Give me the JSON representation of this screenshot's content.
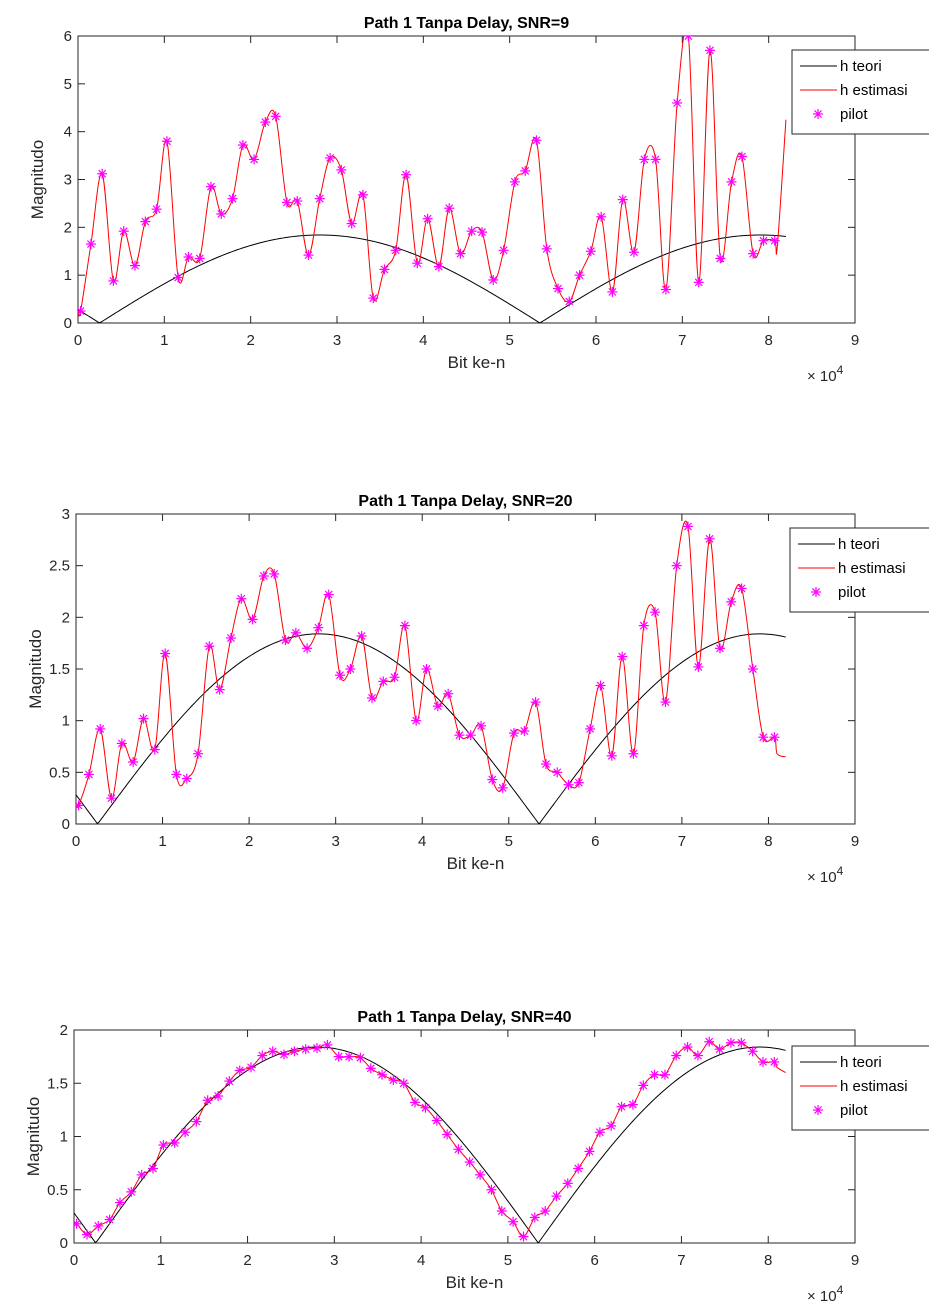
{
  "chart_data": [
    {
      "type": "line",
      "title": "Path 1 Tanpa Delay, SNR=9",
      "xlabel": "Bit ke-n",
      "ylabel": "Magnitudo",
      "x_multiplier_label": "× 10^4",
      "x_multiplier_base": "× 10",
      "x_multiplier_exp": "4",
      "xlim": [
        0,
        9
      ],
      "ylim": [
        0,
        6
      ],
      "xticks": [
        "0",
        "1",
        "2",
        "3",
        "4",
        "5",
        "6",
        "7",
        "8",
        "9"
      ],
      "yticks": [
        "0",
        "1",
        "2",
        "3",
        "4",
        "5",
        "6"
      ],
      "legend": {
        "placement": "top-right-outside",
        "entries": [
          "h teori",
          "h estimasi",
          "pilot"
        ]
      },
      "series": [
        {
          "name": "h teori",
          "color": "#000000",
          "style": "line"
        },
        {
          "name": "h estimasi",
          "color": "#ff0000",
          "style": "line",
          "tail_x": [
            8.1,
            8.2
          ],
          "tail_y": [
            1.6,
            4.25
          ]
        },
        {
          "name": "pilot",
          "color": "#ff00ff",
          "style": "asterisk",
          "x": [
            0.03,
            0.15,
            0.28,
            0.41,
            0.53,
            0.66,
            0.78,
            0.91,
            1.03,
            1.16,
            1.28,
            1.41,
            1.54,
            1.66,
            1.79,
            1.91,
            2.04,
            2.17,
            2.29,
            2.42,
            2.54,
            2.67,
            2.8,
            2.92,
            3.05,
            3.17,
            3.3,
            3.42,
            3.55,
            3.68,
            3.8,
            3.93,
            4.05,
            4.18,
            4.3,
            4.43,
            4.56,
            4.68,
            4.81,
            4.93,
            5.06,
            5.18,
            5.31,
            5.43,
            5.56,
            5.69,
            5.81,
            5.94,
            6.06,
            6.19,
            6.31,
            6.44,
            6.56,
            6.69,
            6.81,
            6.94,
            7.07,
            7.19,
            7.32,
            7.44,
            7.57,
            7.69,
            7.82,
            7.94,
            8.07
          ],
          "y": [
            0.25,
            1.65,
            3.12,
            0.88,
            1.92,
            1.2,
            2.12,
            2.38,
            3.8,
            0.95,
            1.38,
            1.35,
            2.85,
            2.28,
            2.6,
            3.72,
            3.42,
            4.2,
            4.32,
            2.52,
            2.55,
            1.42,
            2.6,
            3.45,
            3.2,
            2.08,
            2.68,
            0.52,
            1.12,
            1.52,
            3.1,
            1.25,
            2.18,
            1.18,
            2.4,
            1.45,
            1.92,
            1.9,
            0.9,
            1.52,
            2.95,
            3.18,
            3.82,
            1.55,
            0.72,
            0.45,
            1.0,
            1.5,
            2.22,
            0.65,
            2.58,
            1.48,
            3.42,
            3.42,
            0.7,
            4.6,
            6.0,
            0.85,
            5.7,
            1.35,
            2.95,
            3.48,
            1.45,
            1.72,
            1.72
          ]
        }
      ]
    },
    {
      "type": "line",
      "title": "Path 1 Tanpa Delay, SNR=20",
      "xlabel": "Bit ke-n",
      "ylabel": "Magnitudo",
      "x_multiplier_label": "× 10^4",
      "x_multiplier_base": "× 10",
      "x_multiplier_exp": "4",
      "xlim": [
        0,
        9
      ],
      "ylim": [
        0,
        3
      ],
      "xticks": [
        "0",
        "1",
        "2",
        "3",
        "4",
        "5",
        "6",
        "7",
        "8",
        "9"
      ],
      "yticks": [
        "0",
        "0.5",
        "1",
        "1.5",
        "2",
        "2.5",
        "3"
      ],
      "legend": {
        "placement": "top-right-outside",
        "entries": [
          "h teori",
          "h estimasi",
          "pilot"
        ]
      },
      "series": [
        {
          "name": "h teori",
          "color": "#000000",
          "style": "line"
        },
        {
          "name": "h estimasi",
          "color": "#ff0000",
          "style": "line",
          "tail_x": [
            8.1,
            8.2
          ],
          "tail_y": [
            0.68,
            0.65
          ]
        },
        {
          "name": "pilot",
          "color": "#ff00ff",
          "style": "asterisk",
          "x": [
            0.03,
            0.15,
            0.28,
            0.41,
            0.53,
            0.66,
            0.78,
            0.91,
            1.03,
            1.16,
            1.28,
            1.41,
            1.54,
            1.66,
            1.79,
            1.91,
            2.04,
            2.17,
            2.29,
            2.42,
            2.54,
            2.67,
            2.8,
            2.92,
            3.05,
            3.17,
            3.3,
            3.42,
            3.55,
            3.68,
            3.8,
            3.93,
            4.05,
            4.18,
            4.3,
            4.43,
            4.56,
            4.68,
            4.81,
            4.93,
            5.06,
            5.18,
            5.31,
            5.43,
            5.56,
            5.69,
            5.81,
            5.94,
            6.06,
            6.19,
            6.31,
            6.44,
            6.56,
            6.69,
            6.81,
            6.94,
            7.07,
            7.19,
            7.32,
            7.44,
            7.57,
            7.69,
            7.82,
            7.94,
            8.07
          ],
          "y": [
            0.18,
            0.48,
            0.92,
            0.25,
            0.78,
            0.6,
            1.02,
            0.72,
            1.65,
            0.48,
            0.44,
            0.68,
            1.72,
            1.3,
            1.8,
            2.18,
            1.98,
            2.4,
            2.42,
            1.78,
            1.85,
            1.7,
            1.9,
            2.22,
            1.44,
            1.5,
            1.82,
            1.22,
            1.38,
            1.42,
            1.92,
            1.0,
            1.5,
            1.14,
            1.26,
            0.86,
            0.86,
            0.95,
            0.43,
            0.35,
            0.88,
            0.9,
            1.18,
            0.58,
            0.5,
            0.38,
            0.4,
            0.92,
            1.34,
            0.66,
            1.62,
            0.68,
            1.92,
            2.05,
            1.18,
            2.5,
            2.88,
            1.52,
            2.76,
            1.7,
            2.15,
            2.28,
            1.5,
            0.84,
            0.84
          ]
        }
      ]
    },
    {
      "type": "line",
      "title": "Path 1 Tanpa Delay, SNR=40",
      "xlabel": "Bit ke-n",
      "ylabel": "Magnitudo",
      "x_multiplier_label": "× 10^4",
      "x_multiplier_base": "× 10",
      "x_multiplier_exp": "4",
      "xlim": [
        0,
        9
      ],
      "ylim": [
        0,
        2
      ],
      "xticks": [
        "0",
        "1",
        "2",
        "3",
        "4",
        "5",
        "6",
        "7",
        "8",
        "9"
      ],
      "yticks": [
        "0",
        "0.5",
        "1",
        "1.5",
        "2"
      ],
      "legend": {
        "placement": "right-outside",
        "entries": [
          "h teori",
          "h estimasi",
          "pilot"
        ]
      },
      "series": [
        {
          "name": "h teori",
          "color": "#000000",
          "style": "line"
        },
        {
          "name": "h estimasi",
          "color": "#ff0000",
          "style": "line",
          "tail_x": [
            8.1,
            8.2
          ],
          "tail_y": [
            1.65,
            1.6
          ]
        },
        {
          "name": "pilot",
          "color": "#ff00ff",
          "style": "asterisk",
          "x": [
            0.03,
            0.15,
            0.28,
            0.41,
            0.53,
            0.66,
            0.78,
            0.91,
            1.03,
            1.16,
            1.28,
            1.41,
            1.54,
            1.66,
            1.79,
            1.91,
            2.04,
            2.17,
            2.29,
            2.42,
            2.54,
            2.67,
            2.8,
            2.92,
            3.05,
            3.17,
            3.3,
            3.42,
            3.55,
            3.68,
            3.8,
            3.93,
            4.05,
            4.18,
            4.3,
            4.43,
            4.56,
            4.68,
            4.81,
            4.93,
            5.06,
            5.18,
            5.31,
            5.43,
            5.56,
            5.69,
            5.81,
            5.94,
            6.06,
            6.19,
            6.31,
            6.44,
            6.56,
            6.69,
            6.81,
            6.94,
            7.07,
            7.19,
            7.32,
            7.44,
            7.57,
            7.69,
            7.82,
            7.94,
            8.07
          ],
          "y": [
            0.18,
            0.08,
            0.16,
            0.22,
            0.38,
            0.48,
            0.64,
            0.7,
            0.92,
            0.94,
            1.04,
            1.14,
            1.34,
            1.38,
            1.52,
            1.62,
            1.65,
            1.76,
            1.8,
            1.77,
            1.8,
            1.82,
            1.83,
            1.86,
            1.75,
            1.75,
            1.74,
            1.64,
            1.58,
            1.53,
            1.5,
            1.32,
            1.27,
            1.15,
            1.02,
            0.88,
            0.76,
            0.64,
            0.5,
            0.3,
            0.2,
            0.06,
            0.24,
            0.3,
            0.44,
            0.56,
            0.7,
            0.86,
            1.04,
            1.1,
            1.28,
            1.3,
            1.48,
            1.58,
            1.58,
            1.76,
            1.84,
            1.76,
            1.89,
            1.82,
            1.88,
            1.88,
            1.8,
            1.7,
            1.7
          ]
        }
      ]
    }
  ]
}
